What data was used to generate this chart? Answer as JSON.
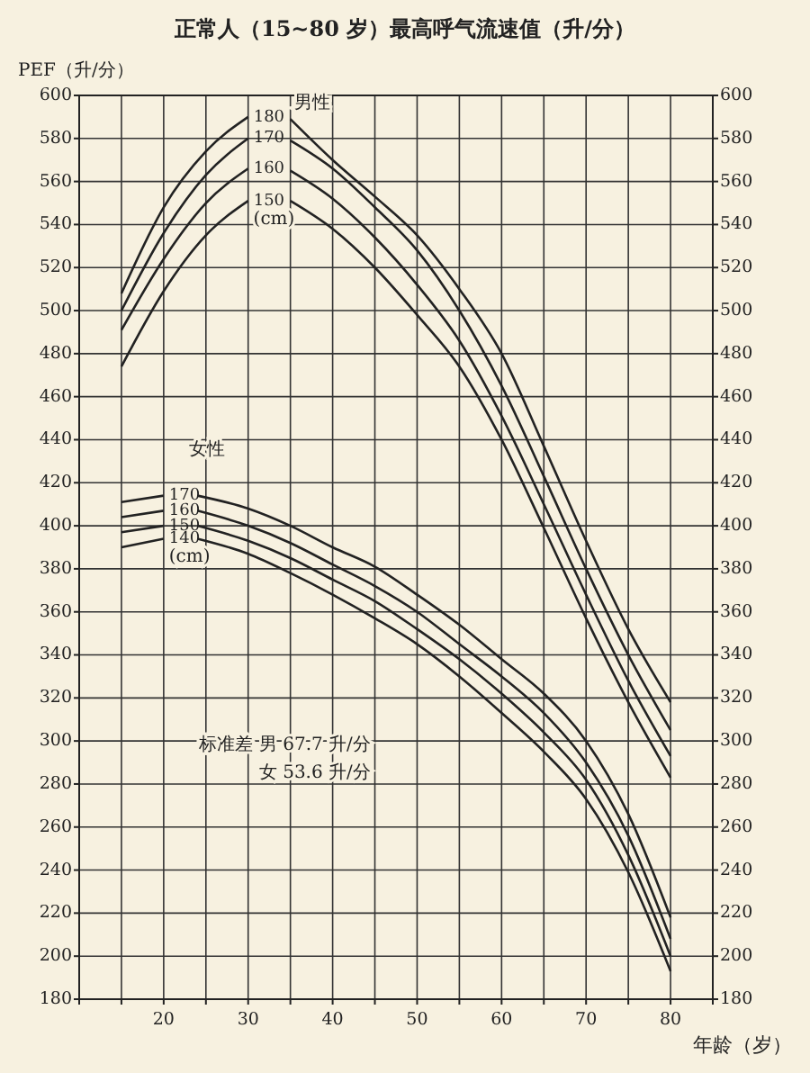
{
  "chart_data": {
    "type": "line",
    "title": "正常人（15~80 岁）最高呼气流速值（升/分）",
    "xlabel": "年龄（岁）",
    "ylabel": "PEF（升/分）",
    "annotations": [
      "男性",
      "(cm)",
      "女性",
      "(cm)",
      "标准差 男 67.7 升/分",
      "女 53.6 升/分"
    ],
    "xlim": [
      10,
      85
    ],
    "xticks": [
      {
        "value": 10,
        "label": null
      },
      {
        "value": 15,
        "label": null
      },
      20,
      {
        "value": 25,
        "label": null
      },
      30,
      {
        "value": 35,
        "label": null
      },
      40,
      {
        "value": 45,
        "label": null
      },
      50,
      {
        "value": 55,
        "label": null
      },
      60,
      {
        "value": 65,
        "label": null
      },
      70,
      {
        "value": 75,
        "label": null
      },
      80,
      {
        "value": 85,
        "label": null
      }
    ],
    "ylim": [
      180,
      600
    ],
    "yticks": [
      180,
      200,
      220,
      240,
      260,
      280,
      300,
      320,
      340,
      360,
      380,
      400,
      420,
      440,
      460,
      480,
      500,
      520,
      540,
      560,
      580,
      600
    ],
    "y2lim": [
      180,
      600
    ],
    "y2ticks": [
      180,
      200,
      220,
      240,
      260,
      280,
      300,
      320,
      340,
      360,
      380,
      400,
      420,
      440,
      460,
      480,
      500,
      520,
      540,
      560,
      580,
      600
    ],
    "grid": true,
    "marker": "none",
    "line_style": "solid",
    "series": [
      {
        "name": "180",
        "color": "#222222",
        "x": [
          15,
          20,
          25,
          30,
          32.5,
          35,
          40,
          45,
          50,
          55,
          60,
          65,
          70,
          75,
          80
        ],
        "values": [
          508,
          548,
          574,
          590,
          null,
          589,
          570,
          553,
          535,
          510,
          480,
          437,
          393,
          352,
          318
        ]
      },
      {
        "name": "170",
        "color": "#222222",
        "x": [
          15,
          20,
          25,
          30,
          32.5,
          35,
          40,
          45,
          50,
          55,
          60,
          65,
          70,
          75,
          80
        ],
        "values": [
          500,
          536,
          563,
          580,
          null,
          579,
          566,
          548,
          528,
          500,
          465,
          423,
          380,
          340,
          305
        ]
      },
      {
        "name": "160",
        "color": "#222222",
        "x": [
          15,
          20,
          25,
          30,
          32.5,
          35,
          40,
          45,
          50,
          55,
          60,
          65,
          70,
          75,
          80
        ],
        "values": [
          491,
          524,
          550,
          566,
          null,
          565,
          552,
          534,
          512,
          486,
          451,
          410,
          368,
          328,
          293
        ]
      },
      {
        "name": "150",
        "color": "#222222",
        "x": [
          15,
          20,
          25,
          30,
          32.5,
          35,
          40,
          45,
          50,
          55,
          60,
          65,
          70,
          75,
          80
        ],
        "values": [
          474,
          509,
          535,
          551,
          null,
          551,
          538,
          520,
          498,
          474,
          440,
          399,
          357,
          318,
          283
        ]
      },
      {
        "name": "170",
        "color": "#222222",
        "x": [
          15,
          20,
          22,
          24,
          30,
          35,
          40,
          45,
          50,
          55,
          60,
          65,
          70,
          75,
          80
        ],
        "values": [
          411,
          414,
          null,
          414,
          408,
          400,
          390,
          381,
          368,
          354,
          338,
          322,
          300,
          266,
          218
        ]
      },
      {
        "name": "160",
        "color": "#222222",
        "x": [
          15,
          20,
          22,
          24,
          30,
          35,
          40,
          45,
          50,
          55,
          60,
          65,
          70,
          75,
          80
        ],
        "values": [
          404,
          407,
          null,
          407,
          400,
          392,
          382,
          372,
          360,
          345,
          330,
          313,
          290,
          256,
          208
        ]
      },
      {
        "name": "150",
        "color": "#222222",
        "x": [
          15,
          20,
          22,
          24,
          30,
          35,
          40,
          45,
          50,
          55,
          60,
          65,
          70,
          75,
          80
        ],
        "values": [
          397,
          400,
          null,
          400,
          393,
          385,
          375,
          365,
          352,
          338,
          322,
          304,
          282,
          247,
          200
        ]
      },
      {
        "name": "140",
        "color": "#222222",
        "x": [
          15,
          20,
          22,
          24,
          30,
          35,
          40,
          45,
          50,
          55,
          60,
          65,
          70,
          75,
          80
        ],
        "values": [
          390,
          394,
          null,
          394,
          387,
          378,
          368,
          357,
          345,
          330,
          313,
          295,
          273,
          239,
          193
        ]
      }
    ]
  }
}
